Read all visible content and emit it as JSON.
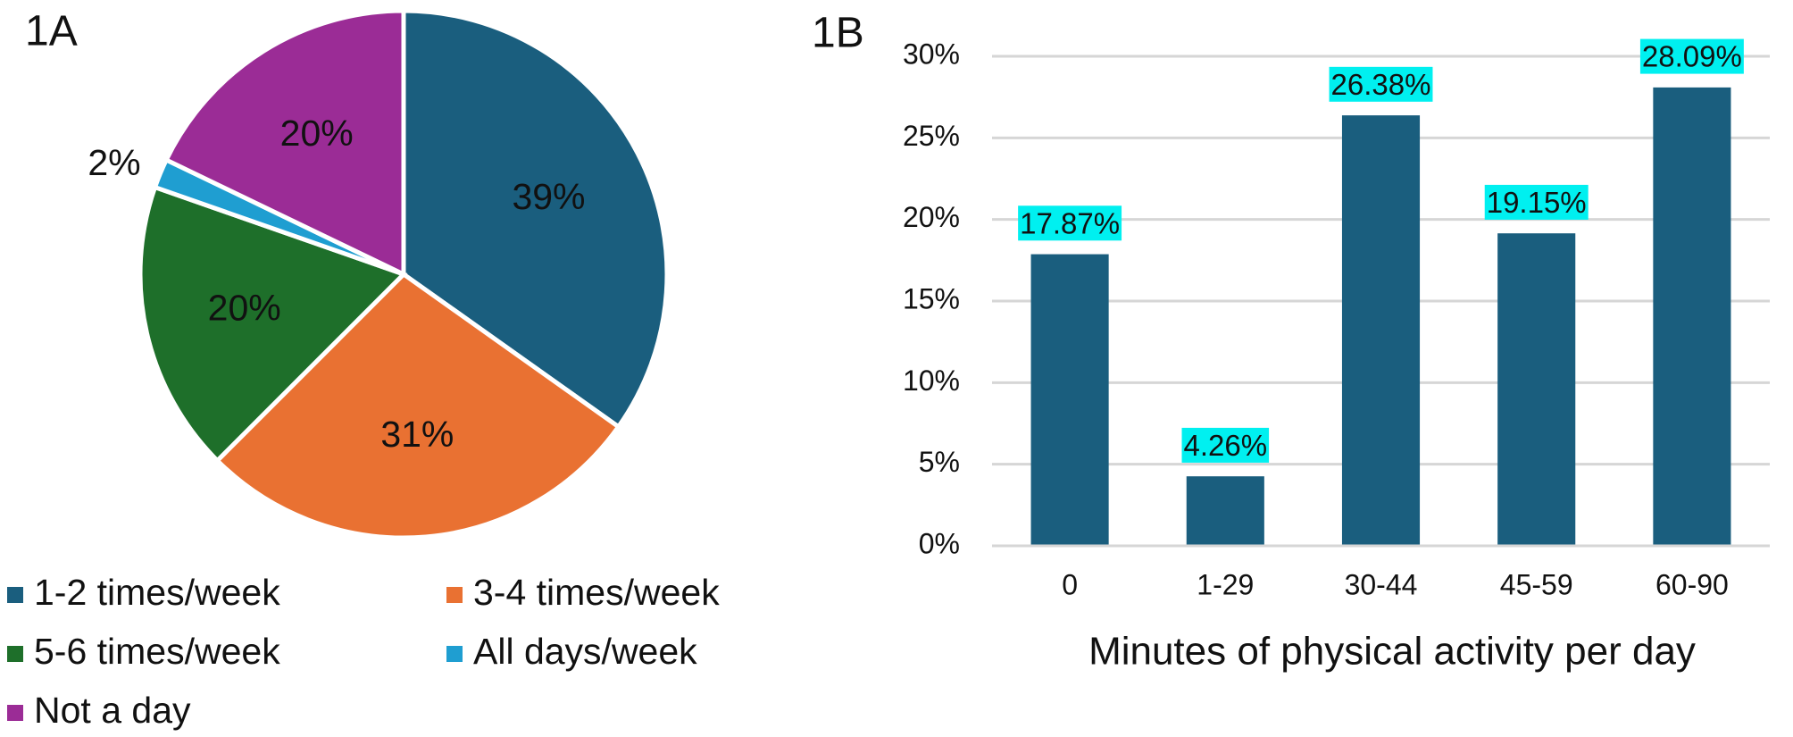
{
  "chart_data": [
    {
      "type": "pie",
      "title": "1A",
      "categories": [
        "1-2 times/week",
        "3-4 times/week",
        "5-6 times/week",
        "All days/week",
        "Not a day"
      ],
      "values": [
        39,
        31,
        20,
        2,
        20
      ],
      "value_labels": [
        "39%",
        "31%",
        "20%",
        "2%",
        "20%"
      ],
      "colors": [
        "#1a5e7e",
        "#e97132",
        "#1e6f2a",
        "#1f9ed1",
        "#9b2c96"
      ]
    },
    {
      "type": "bar",
      "title": "1B",
      "categories": [
        "0",
        "1-29",
        "30-44",
        "45-59",
        "60-90"
      ],
      "values": [
        17.87,
        4.26,
        26.38,
        19.15,
        28.09
      ],
      "value_labels": [
        "17.87%",
        "4.26%",
        "26.38%",
        "19.15%",
        "28.09%"
      ],
      "color": "#1a5e7e",
      "label_background": "#00f0f0",
      "x_label": "Minutes of physical activity per day",
      "ylim": [
        0,
        30
      ],
      "yticks": [
        {
          "value": 0,
          "label": "0%"
        },
        {
          "value": 5,
          "label": "5%"
        },
        {
          "value": 10,
          "label": "10%"
        },
        {
          "value": 15,
          "label": "15%"
        },
        {
          "value": 20,
          "label": "20%"
        },
        {
          "value": 25,
          "label": "25%"
        },
        {
          "value": 30,
          "label": "30%"
        }
      ],
      "grid": true
    }
  ]
}
